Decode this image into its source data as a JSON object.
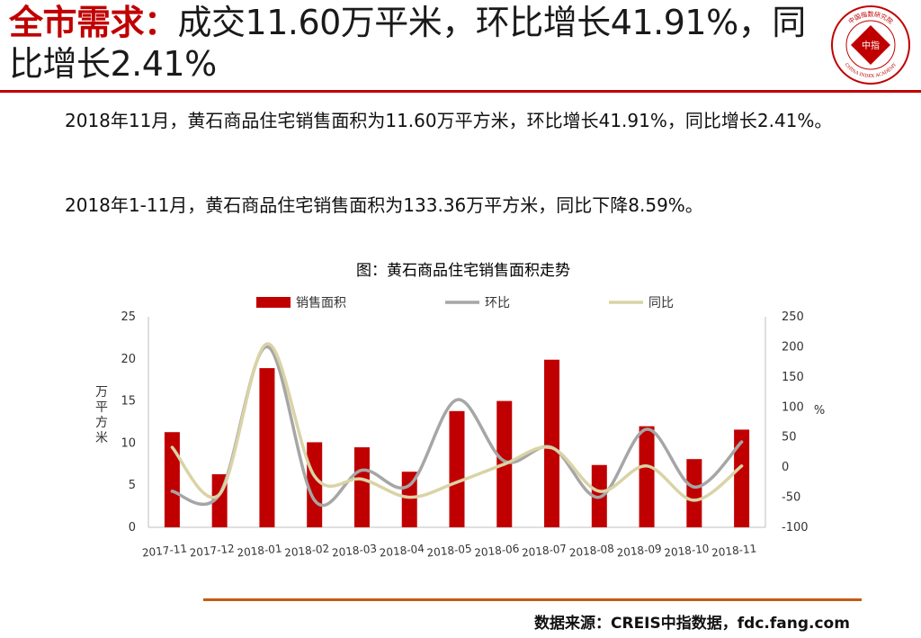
{
  "header": {
    "title_accent": "全市需求：",
    "title_rest": "成交11.60万平米，环比增长41.91%，同比增长2.41%",
    "logo_top_text": "中国指数研究院",
    "logo_center_text": "中指",
    "logo_bottom_text": "CHINA INDEX ACADEMY",
    "accent_color": "#c00000"
  },
  "body": {
    "paragraph_1": "2018年11月，黄石商品住宅销售面积为11.60万平方米，环比增长41.91%，同比增长2.41%。",
    "paragraph_2": "2018年1-11月，黄石商品住宅销售面积为133.36万平方米，同比下降8.59%。"
  },
  "chart_data": {
    "type": "bar",
    "title": "图：黄石商品住宅销售面积走势",
    "categories": [
      "2017-11",
      "2017-12",
      "2018-01",
      "2018-02",
      "2018-03",
      "2018-04",
      "2018-05",
      "2018-06",
      "2018-07",
      "2018-08",
      "2018-09",
      "2018-10",
      "2018-11"
    ],
    "ylabel": "万平方米",
    "y2label": "%",
    "ylim": [
      0,
      25
    ],
    "y_ticks": [
      "0",
      "5",
      "10",
      "15",
      "20",
      "25"
    ],
    "y2lim": [
      -100,
      250
    ],
    "y2_ticks": [
      "-100",
      "-50",
      "0",
      "50",
      "100",
      "150",
      "200",
      "250"
    ],
    "legend_position": "top",
    "grid": false,
    "series": [
      {
        "name": "销售面积",
        "kind": "bar",
        "axis": "left",
        "color": "#c00000",
        "values": [
          11.3,
          6.3,
          18.9,
          10.1,
          9.5,
          6.6,
          13.8,
          15.0,
          19.9,
          7.4,
          12.0,
          8.1,
          11.6
        ]
      },
      {
        "name": "环比",
        "kind": "line",
        "axis": "right",
        "color": "#a6a6a6",
        "values": [
          -40,
          -45,
          200,
          -55,
          -5,
          -30,
          112,
          10,
          33,
          -50,
          63,
          -33,
          42
        ]
      },
      {
        "name": "同比",
        "kind": "line",
        "axis": "right",
        "color": "#d9d3a6",
        "values": [
          33,
          -45,
          205,
          -15,
          -20,
          -50,
          -25,
          5,
          32,
          -40,
          2,
          -55,
          2
        ]
      }
    ]
  },
  "footer": {
    "source": "数据来源：CREIS中指数据，fdc.fang.com",
    "rule_color": "#c55a11"
  }
}
